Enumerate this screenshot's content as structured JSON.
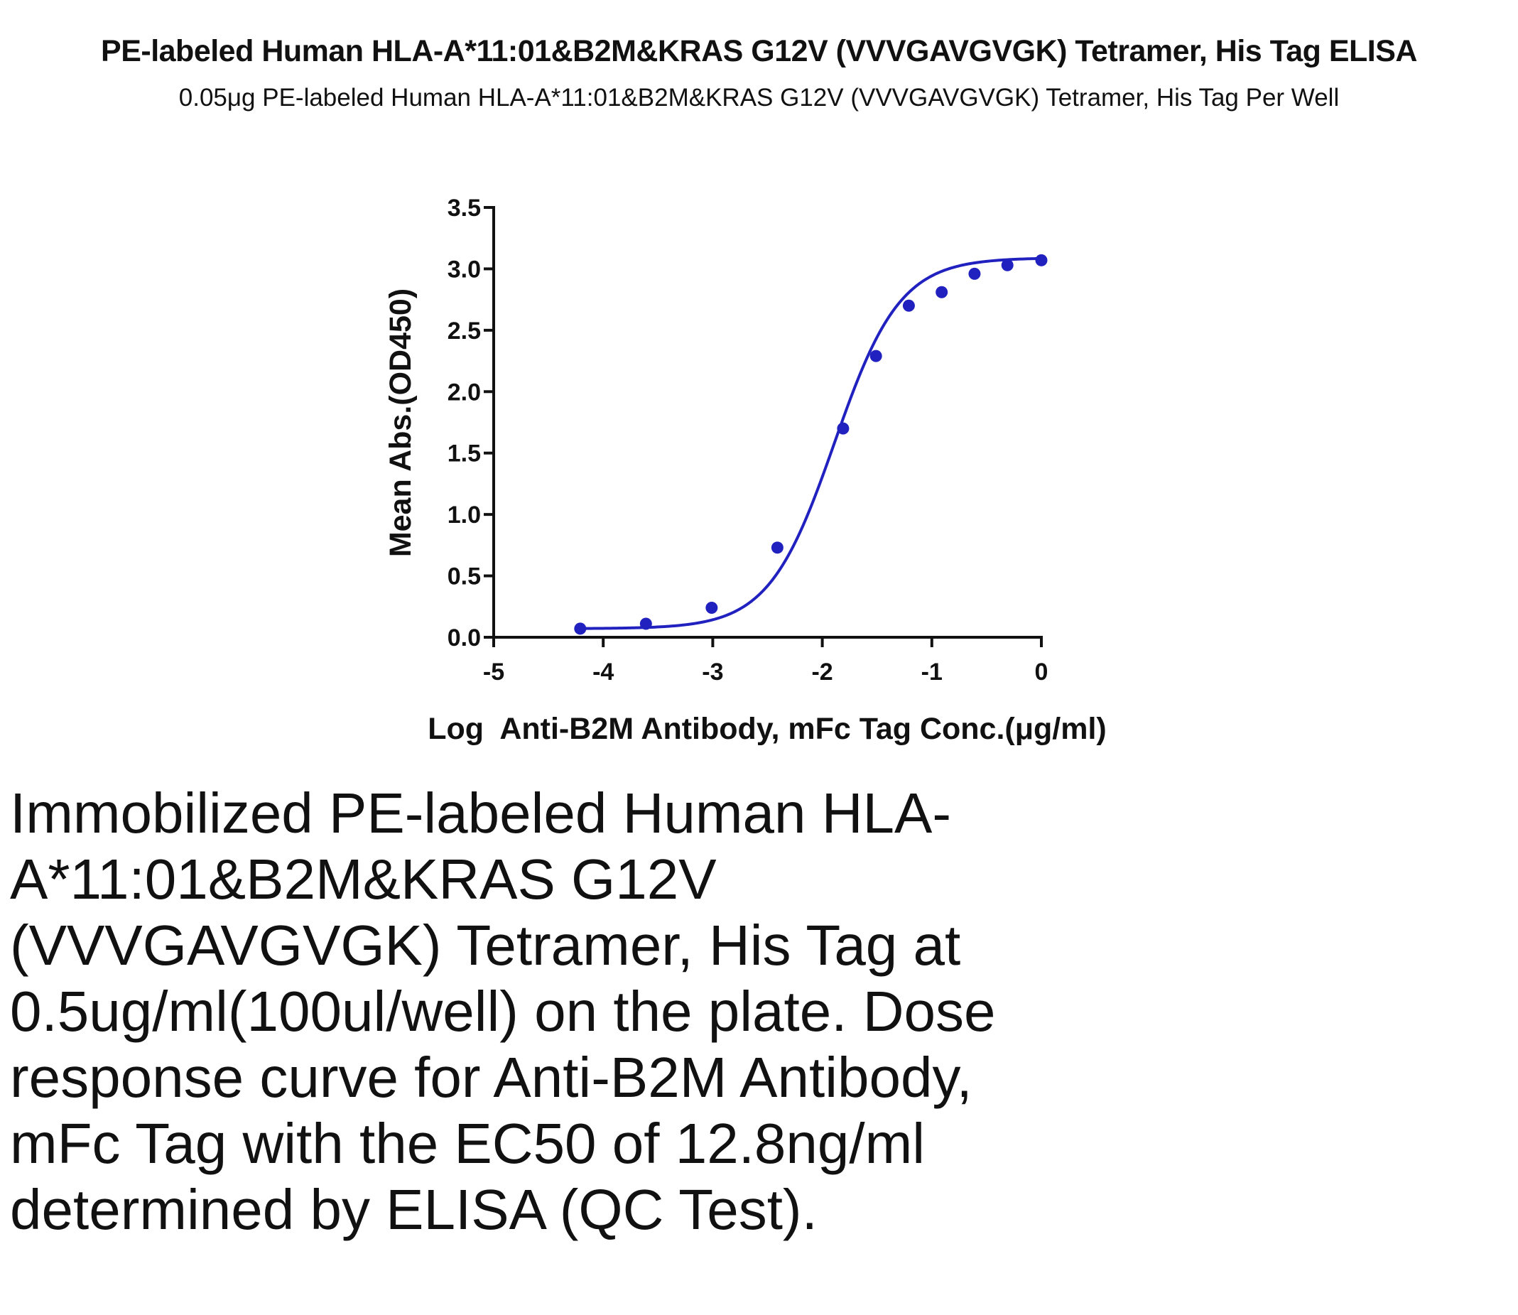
{
  "chart_data": {
    "type": "scatter",
    "title": "PE-labeled Human HLA-A*11:01&B2M&KRAS G12V (VVVGAVGVGK) Tetramer, His Tag ELISA",
    "subtitle": "0.05μg PE-labeled Human HLA-A*11:01&B2M&KRAS G12V (VVVGAVGVGK) Tetramer, His Tag Per Well",
    "xlabel": "Log  Anti-B2M Antibody, mFc Tag Conc.(μg/ml)",
    "ylabel": "Mean Abs.(OD450)",
    "xlim": [
      -5,
      0
    ],
    "ylim": [
      0,
      3.5
    ],
    "x_ticks": [
      "-5",
      "-4",
      "-3",
      "-2",
      "-1",
      "0"
    ],
    "y_ticks": [
      "0.0",
      "0.5",
      "1.0",
      "1.5",
      "2.0",
      "2.5",
      "3.0",
      "3.5"
    ],
    "grid": false,
    "legend": "none",
    "series_color": "#2121c0",
    "points": {
      "x": [
        -4.21,
        -3.61,
        -3.01,
        -2.41,
        -1.81,
        -1.51,
        -1.21,
        -0.91,
        -0.61,
        -0.31,
        0.0
      ],
      "y": [
        0.07,
        0.11,
        0.24,
        0.73,
        1.7,
        2.29,
        2.7,
        2.81,
        2.96,
        3.03,
        3.07
      ]
    },
    "fit_curve": {
      "model": "4PL",
      "bottom": 0.07,
      "top": 3.09,
      "log_ec50": -1.89,
      "hill_slope": 1.45
    }
  },
  "caption": "Immobilized PE-labeled Human HLA-A*11:01&B2M&KRAS G12V (VVVGAVGVGK) Tetramer, His Tag at 0.5ug/ml(100ul/well) on the plate. Dose response curve for Anti-B2M Antibody, mFc Tag with the EC50 of 12.8ng/ml determined by ELISA (QC Test)."
}
